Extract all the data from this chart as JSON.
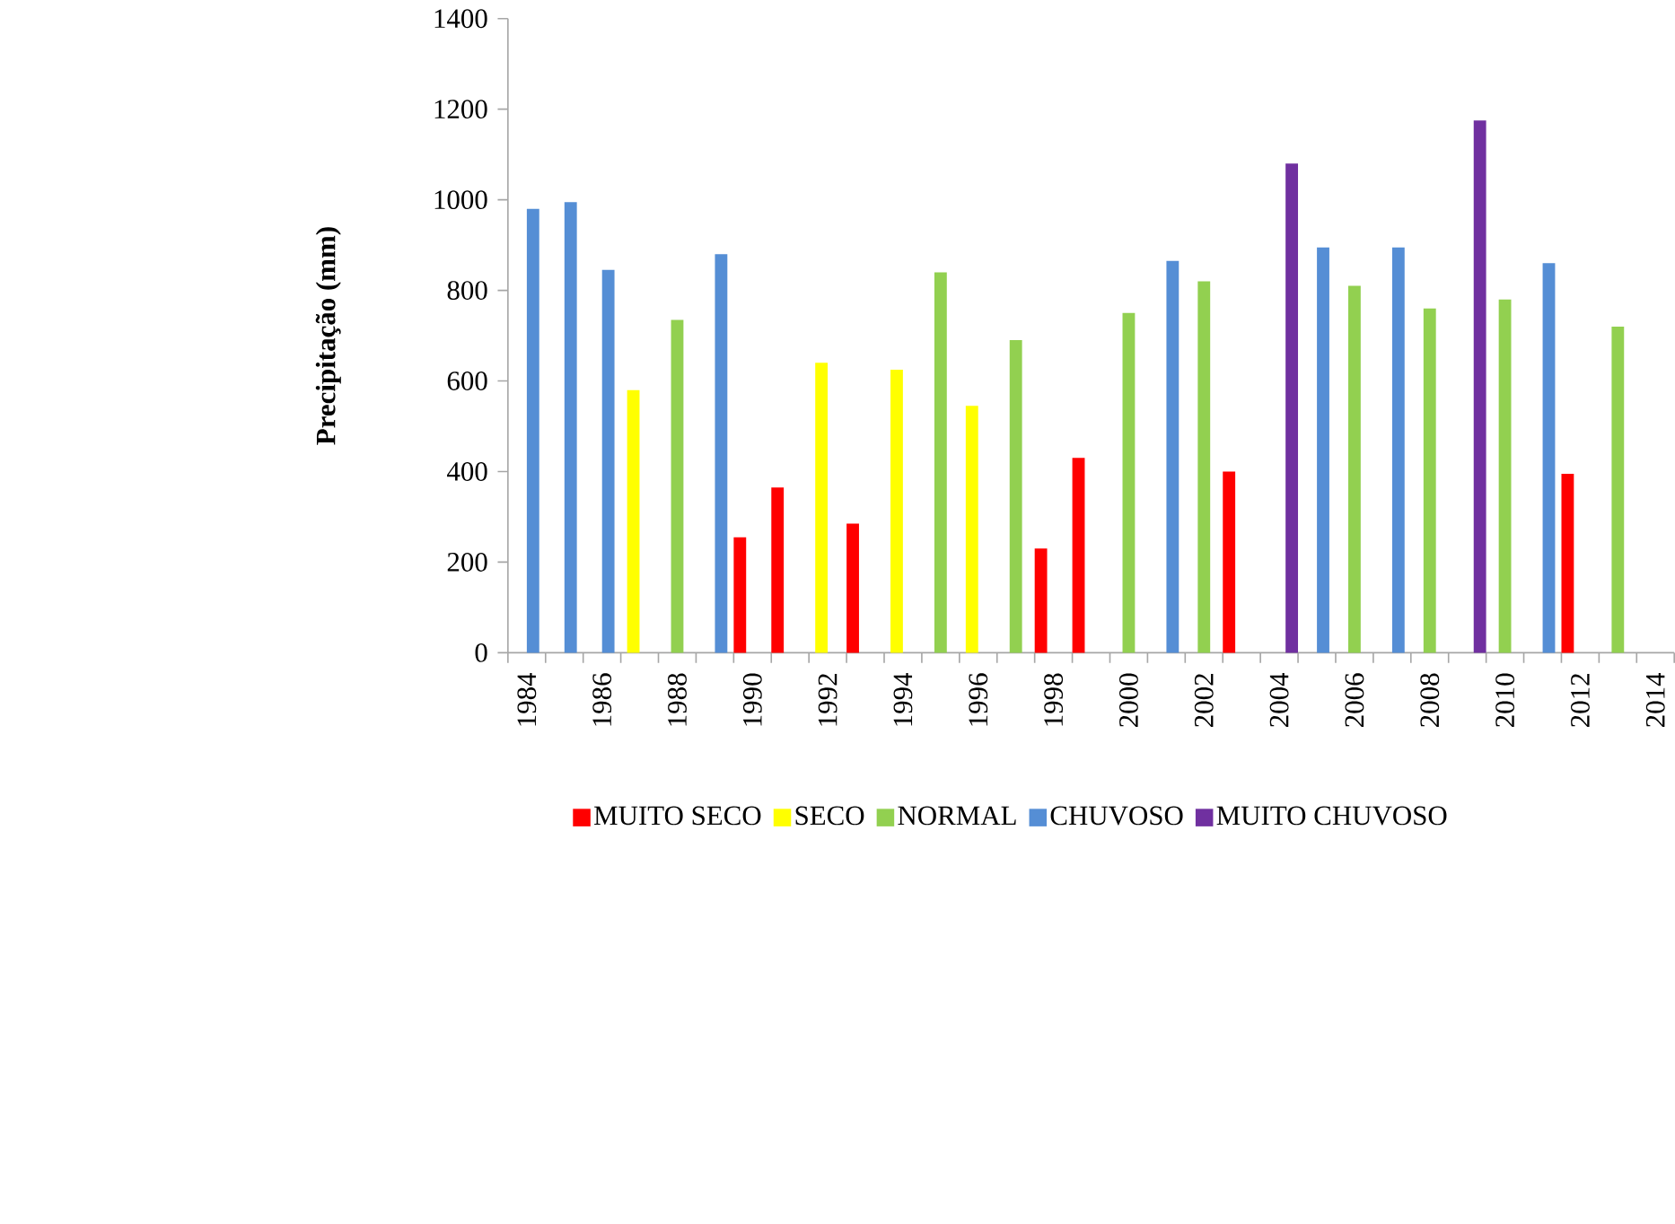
{
  "chart_data": {
    "type": "bar",
    "ylabel": "Precipitação (mm)",
    "categories": [
      "1984",
      null,
      "1986",
      null,
      "1988",
      null,
      "1990",
      null,
      "1992",
      null,
      "1994",
      null,
      "1996",
      null,
      "1998",
      null,
      "2000",
      null,
      "2002",
      null,
      "2004",
      null,
      "2006",
      null,
      "2008",
      null,
      "2010",
      null,
      "2012",
      null,
      "2014"
    ],
    "series": [
      {
        "name": "MUITO SECO",
        "color": "#ff0000",
        "values": [
          null,
          null,
          null,
          null,
          null,
          null,
          255,
          365,
          null,
          285,
          null,
          null,
          null,
          null,
          230,
          430,
          null,
          null,
          null,
          400,
          null,
          null,
          null,
          null,
          null,
          null,
          null,
          null,
          395,
          null,
          null
        ]
      },
      {
        "name": "SECO",
        "color": "#ffff00",
        "values": [
          null,
          null,
          null,
          580,
          null,
          null,
          null,
          null,
          640,
          null,
          625,
          null,
          545,
          null,
          null,
          null,
          null,
          null,
          null,
          null,
          null,
          null,
          null,
          null,
          null,
          null,
          null,
          null,
          null,
          null,
          null
        ]
      },
      {
        "name": "NORMAL",
        "color": "#92d050",
        "values": [
          null,
          null,
          null,
          null,
          735,
          null,
          null,
          null,
          null,
          null,
          null,
          840,
          null,
          690,
          null,
          null,
          750,
          null,
          820,
          null,
          null,
          null,
          810,
          null,
          760,
          null,
          780,
          null,
          null,
          720,
          null
        ]
      },
      {
        "name": "CHUVOSO",
        "color": "#558ed5",
        "values": [
          980,
          995,
          845,
          null,
          null,
          880,
          null,
          null,
          null,
          null,
          null,
          null,
          null,
          null,
          null,
          null,
          null,
          865,
          null,
          null,
          null,
          895,
          null,
          895,
          null,
          null,
          null,
          860,
          null,
          null,
          null
        ]
      },
      {
        "name": "MUITO CHUVOSO",
        "color": "#7030a0",
        "values": [
          null,
          null,
          null,
          null,
          null,
          null,
          null,
          null,
          null,
          null,
          null,
          null,
          null,
          null,
          null,
          null,
          null,
          null,
          null,
          null,
          1080,
          null,
          null,
          null,
          null,
          1175,
          null,
          null,
          null,
          null,
          null
        ]
      }
    ],
    "ylim": [
      0,
      1400
    ],
    "yticks": [
      0,
      200,
      400,
      600,
      800,
      1000,
      1200,
      1400
    ],
    "legend": "bottom"
  }
}
